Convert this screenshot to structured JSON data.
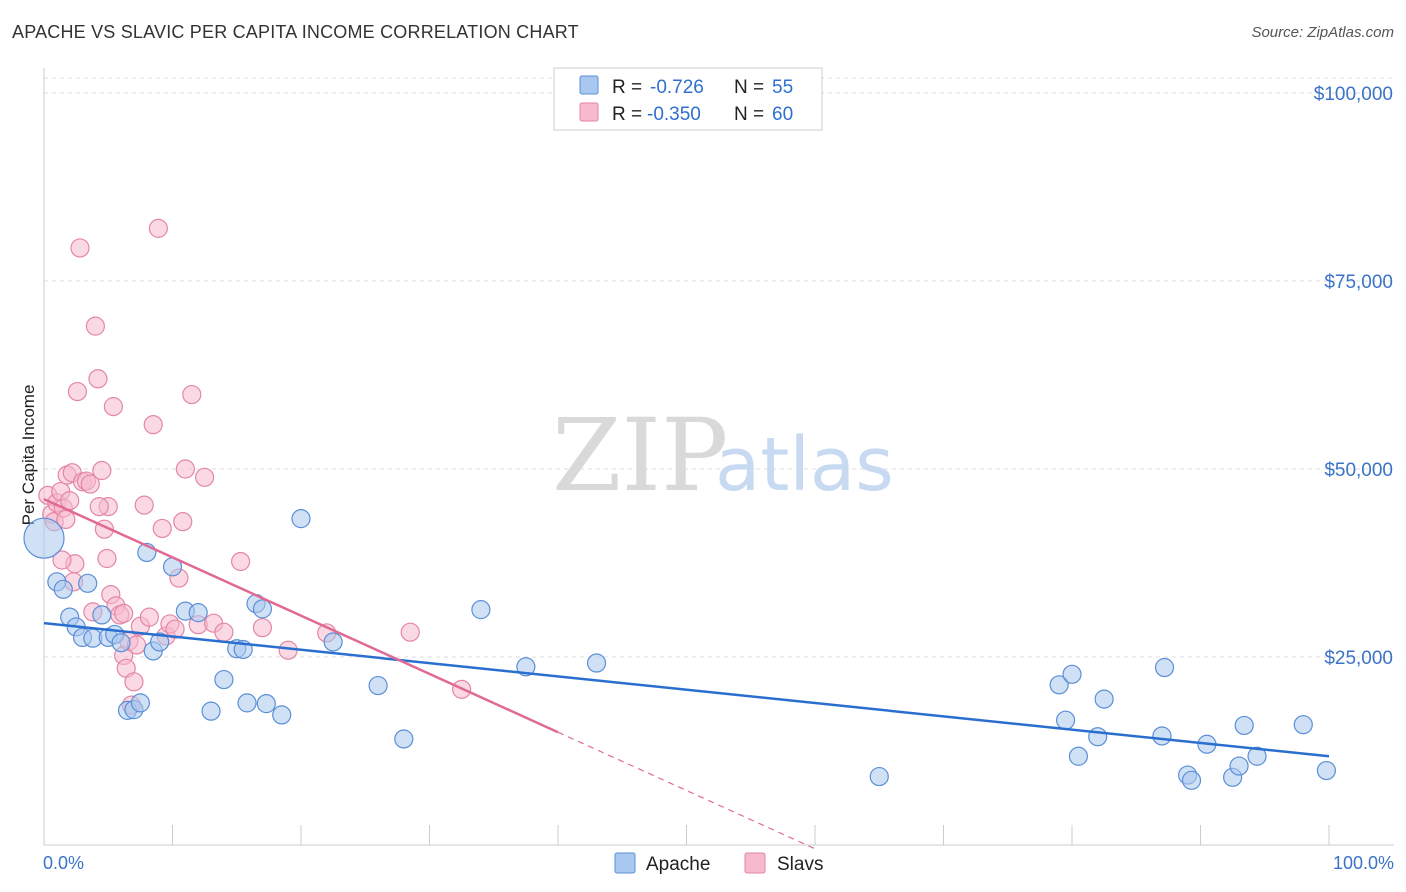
{
  "header": {
    "title": "APACHE VS SLAVIC PER CAPITA INCOME CORRELATION CHART",
    "source": "Source: ZipAtlas.com"
  },
  "colors": {
    "apache_fill": "#a9c8ef",
    "apache_stroke": "#5b8fd6",
    "apache_line": "#2a6fd0",
    "slavs_fill": "#f6b9cd",
    "slavs_stroke": "#e486a6",
    "slavs_line": "#e06a95",
    "grid": "#dddddd",
    "axis_label": "#3a73c8"
  },
  "legend": {
    "rows": [
      {
        "r_label": "R =",
        "r_value": "-0.726",
        "n_label": "N =",
        "n_value": "55"
      },
      {
        "r_label": "R =",
        "r_value": "-0.350",
        "n_label": "N =",
        "n_value": "60"
      }
    ]
  },
  "watermark": {
    "zip": "ZIP",
    "atlas": "atlas"
  },
  "chart_data": {
    "type": "scatter",
    "title": "APACHE VS SLAVIC PER CAPITA INCOME CORRELATION CHART",
    "xlabel": "",
    "ylabel": "Per Capita Income",
    "x_tick_labels": [
      "0.0%",
      "100.0%"
    ],
    "y_tick_labels": [
      "$25,000",
      "$50,000",
      "$75,000",
      "$100,000"
    ],
    "y_ticks": [
      25000,
      50000,
      75000,
      100000
    ],
    "xlim": [
      0,
      100
    ],
    "ylim": [
      0,
      102000
    ],
    "grid": true,
    "legend_position": "top-center",
    "series": [
      {
        "name": "Apache",
        "r": -0.726,
        "n": 55,
        "trend": {
          "x0": 0,
          "y0": 29500,
          "x1": 100,
          "y1": 11800
        },
        "points": [
          [
            0,
            40800
          ],
          [
            1,
            35000
          ],
          [
            1.5,
            34000
          ],
          [
            2,
            30300
          ],
          [
            2.5,
            29000
          ],
          [
            3,
            27600
          ],
          [
            3.4,
            34800
          ],
          [
            3.8,
            27500
          ],
          [
            4.5,
            30600
          ],
          [
            5,
            27600
          ],
          [
            5.5,
            28000
          ],
          [
            6,
            26900
          ],
          [
            6.5,
            17900
          ],
          [
            7,
            18000
          ],
          [
            7.5,
            18900
          ],
          [
            8,
            38900
          ],
          [
            8.5,
            25800
          ],
          [
            9,
            27000
          ],
          [
            10,
            37000
          ],
          [
            11,
            31100
          ],
          [
            12,
            30900
          ],
          [
            13,
            17800
          ],
          [
            14,
            22000
          ],
          [
            15,
            26100
          ],
          [
            15.5,
            26000
          ],
          [
            15.8,
            18900
          ],
          [
            16.5,
            32100
          ],
          [
            17,
            31400
          ],
          [
            17.3,
            18800
          ],
          [
            18.5,
            17300
          ],
          [
            20,
            43400
          ],
          [
            22.5,
            27000
          ],
          [
            26,
            21200
          ],
          [
            28,
            14100
          ],
          [
            34,
            31300
          ],
          [
            37.5,
            23700
          ],
          [
            43,
            24200
          ],
          [
            65,
            9100
          ],
          [
            79,
            21300
          ],
          [
            79.5,
            16600
          ],
          [
            80,
            22700
          ],
          [
            80.5,
            11800
          ],
          [
            82,
            14400
          ],
          [
            82.5,
            19400
          ],
          [
            87,
            14500
          ],
          [
            87.2,
            23600
          ],
          [
            89,
            9300
          ],
          [
            89.3,
            8600
          ],
          [
            90.5,
            13400
          ],
          [
            92.5,
            9000
          ],
          [
            93,
            10500
          ],
          [
            93.4,
            15900
          ],
          [
            94.4,
            11800
          ],
          [
            98,
            16000
          ],
          [
            99.8,
            9900
          ]
        ]
      },
      {
        "name": "Slavs",
        "r": -0.35,
        "n": 60,
        "trend": {
          "x0": 0,
          "y0": 46000,
          "x1": 40,
          "y1": 15000,
          "dash_to_x": 60
        },
        "points": [
          [
            0.3,
            46500
          ],
          [
            0.6,
            44000
          ],
          [
            0.8,
            43000
          ],
          [
            1,
            45500
          ],
          [
            1.3,
            47000
          ],
          [
            1.5,
            44800
          ],
          [
            1.7,
            43300
          ],
          [
            1.8,
            49200
          ],
          [
            2,
            45800
          ],
          [
            2.2,
            49500
          ],
          [
            2.4,
            37400
          ],
          [
            2.6,
            60300
          ],
          [
            2.8,
            79400
          ],
          [
            3,
            48300
          ],
          [
            3.3,
            48400
          ],
          [
            3.6,
            48000
          ],
          [
            3.8,
            31000
          ],
          [
            4,
            69000
          ],
          [
            4.2,
            62000
          ],
          [
            4.5,
            49800
          ],
          [
            4.7,
            42000
          ],
          [
            4.9,
            38100
          ],
          [
            5,
            45000
          ],
          [
            5.2,
            33300
          ],
          [
            5.4,
            58300
          ],
          [
            5.6,
            31800
          ],
          [
            5.9,
            30600
          ],
          [
            6.2,
            25200
          ],
          [
            6.4,
            23500
          ],
          [
            6.6,
            27100
          ],
          [
            6.8,
            18600
          ],
          [
            7,
            21700
          ],
          [
            7.2,
            26600
          ],
          [
            7.5,
            29100
          ],
          [
            7.8,
            45200
          ],
          [
            8.2,
            30300
          ],
          [
            8.5,
            55900
          ],
          [
            8.9,
            82000
          ],
          [
            9.2,
            42100
          ],
          [
            9.5,
            27800
          ],
          [
            9.8,
            29400
          ],
          [
            10.2,
            28700
          ],
          [
            10.5,
            35500
          ],
          [
            10.8,
            43000
          ],
          [
            11,
            50000
          ],
          [
            11.5,
            59900
          ],
          [
            12,
            29300
          ],
          [
            12.5,
            48900
          ],
          [
            13.2,
            29500
          ],
          [
            14,
            28300
          ],
          [
            15.3,
            37700
          ],
          [
            17,
            28900
          ],
          [
            19,
            25900
          ],
          [
            22,
            28200
          ],
          [
            28.5,
            28300
          ],
          [
            32.5,
            20700
          ],
          [
            2.3,
            35000
          ],
          [
            6.2,
            30800
          ],
          [
            4.3,
            45000
          ],
          [
            1.4,
            37900
          ]
        ]
      }
    ]
  }
}
